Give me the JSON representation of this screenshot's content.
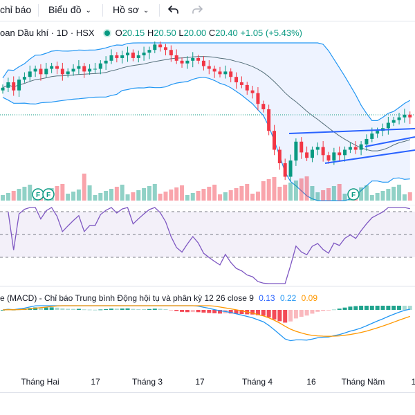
{
  "toolbar": {
    "indicators_label": "chỉ báo",
    "chart_label": "Biểu đồ",
    "profile_label": "Hồ sơ",
    "undo_icon": "undo-icon",
    "redo_icon": "redo-icon"
  },
  "legend": {
    "symbol_title": "oan Dầu khí · 1D · HSX",
    "open_key": "O",
    "open_value": "20.15",
    "high_key": "H",
    "high_value": "20.50",
    "low_key": "L",
    "low_value": "20.00",
    "close_key": "C",
    "close_value": "20.40",
    "change": "+1.05 (+5.43%)"
  },
  "macd": {
    "title": "e (MACD) - Chỉ báo Trung bình Động hội tụ và phân kỳ",
    "params": "12 26 close 9",
    "value_macd": "0.13",
    "value_signal": "0.22",
    "value_hist": "0.09"
  },
  "xaxis": {
    "ticks": [
      "Tháng Hai",
      "17",
      "Tháng 3",
      "17",
      "Tháng 4",
      "16",
      "Tháng Năm",
      "1"
    ]
  },
  "markers": [
    "F",
    "F",
    "F"
  ],
  "colors": {
    "up": "#089981",
    "down": "#f23645",
    "band": "#2962ff",
    "rsi": "#7e57c2",
    "macd_line": "#2196f3",
    "signal_line": "#ff9800"
  },
  "chart_data": {
    "type": "candlestick",
    "price_closes": [
      19.2,
      19.4,
      19.1,
      19.5,
      19.6,
      19.8,
      19.9,
      19.7,
      19.9,
      20.0,
      19.9,
      19.7,
      19.8,
      19.9,
      20.0,
      19.8,
      19.9,
      19.9,
      20.1,
      20.2,
      20.4,
      20.3,
      20.4,
      20.5,
      20.3,
      20.4,
      20.5,
      20.6,
      20.8,
      20.7,
      20.6,
      20.4,
      20.2,
      20.1,
      20.2,
      20.3,
      20.2,
      20.0,
      19.9,
      19.8,
      19.7,
      19.8,
      19.6,
      19.4,
      19.3,
      19.1,
      19.0,
      18.6,
      18.4,
      17.6,
      16.9,
      16.4,
      15.9,
      16.5,
      17.2,
      16.8,
      16.6,
      16.9,
      17.0,
      16.7,
      16.5,
      16.8,
      16.7,
      16.9,
      17.0,
      16.9,
      17.1,
      17.3,
      17.5,
      17.6,
      17.7,
      17.9,
      18.0,
      18.1,
      18.2,
      18.1
    ],
    "rsi_levels": [
      70,
      50,
      30
    ],
    "macd_params": "12 26 close 9",
    "macd_values": {
      "macd": 0.13,
      "signal": 0.22,
      "histogram": 0.09
    }
  }
}
